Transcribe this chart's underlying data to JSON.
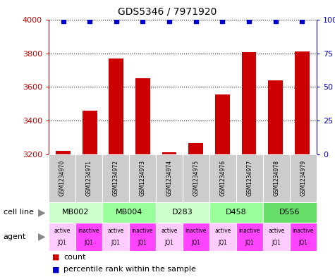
{
  "title": "GDS5346 / 7971920",
  "samples": [
    "GSM1234970",
    "GSM1234971",
    "GSM1234972",
    "GSM1234973",
    "GSM1234974",
    "GSM1234975",
    "GSM1234976",
    "GSM1234977",
    "GSM1234978",
    "GSM1234979"
  ],
  "counts": [
    3220,
    3460,
    3770,
    3650,
    3210,
    3265,
    3555,
    3805,
    3640,
    3810
  ],
  "percentiles": [
    99,
    99,
    99,
    99,
    99,
    99,
    99,
    99,
    99,
    99
  ],
  "cell_lines": [
    {
      "label": "MB002",
      "cols": [
        0,
        1
      ],
      "color": "#ccffcc"
    },
    {
      "label": "MB004",
      "cols": [
        2,
        3
      ],
      "color": "#99ff99"
    },
    {
      "label": "D283",
      "cols": [
        4,
        5
      ],
      "color": "#ccffcc"
    },
    {
      "label": "D458",
      "cols": [
        6,
        7
      ],
      "color": "#99ff99"
    },
    {
      "label": "D556",
      "cols": [
        8,
        9
      ],
      "color": "#66dd66"
    }
  ],
  "agents": [
    "active",
    "inactive",
    "active",
    "inactive",
    "active",
    "inactive",
    "active",
    "inactive",
    "active",
    "inactive"
  ],
  "agent_labels2": [
    "JQ1",
    "JQ1",
    "JQ1",
    "JQ1",
    "JQ1",
    "JQ1",
    "JQ1",
    "JQ1",
    "JQ1",
    "JQ1"
  ],
  "active_color": "#ffccff",
  "inactive_color": "#ff44ff",
  "bar_color": "#cc0000",
  "dot_color": "#0000cc",
  "ymin": 3200,
  "ymax": 4000,
  "yticks": [
    3200,
    3400,
    3600,
    3800,
    4000
  ],
  "y2min": 0,
  "y2max": 100,
  "y2ticks": [
    0,
    25,
    50,
    75,
    100
  ],
  "sample_bg_color": "#cccccc",
  "bar_color_tick": "#cc0000",
  "ylabel2_color": "#0000cc",
  "legend_red_label": "count",
  "legend_blue_label": "percentile rank within the sample"
}
